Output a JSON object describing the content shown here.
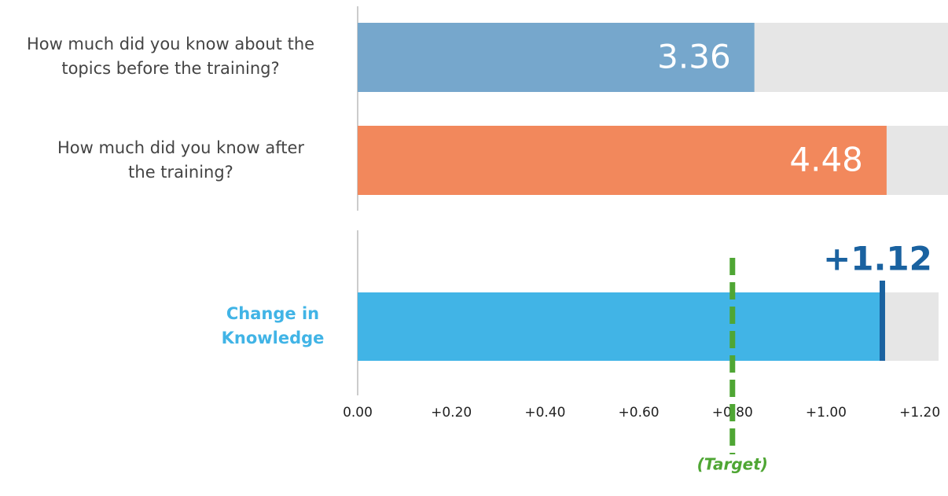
{
  "chart_data": [
    {
      "type": "bar",
      "categories": [
        "How much did you know about the topics before the training?",
        "How much did you know after the training?"
      ],
      "values": [
        3.36,
        4.48
      ],
      "colors": [
        "#76a7cc",
        "#f2885c"
      ],
      "track_color": "#e6e6e6",
      "xlim": [
        0,
        5
      ]
    },
    {
      "type": "bullet",
      "categories": [
        "Change in Knowledge"
      ],
      "values": [
        1.12
      ],
      "value_labels": [
        "+1.12"
      ],
      "color": "#41b4e6",
      "marker_color": "#1a62a0",
      "track_color": "#e6e6e6",
      "target": 0.8,
      "target_label": "(Target)",
      "target_color": "#4fa634",
      "xlim": [
        0,
        1.24
      ],
      "xticks": [
        {
          "value": 0,
          "label": "0.00"
        },
        {
          "value": 0.2,
          "label": "+0.20"
        },
        {
          "value": 0.4,
          "label": "+0.40"
        },
        {
          "value": 0.6,
          "label": "+0.60"
        },
        {
          "value": 0.8,
          "label": "+0.80"
        },
        {
          "value": 1.0,
          "label": "+1.00"
        },
        {
          "value": 1.2,
          "label": "+1.20"
        }
      ]
    }
  ]
}
